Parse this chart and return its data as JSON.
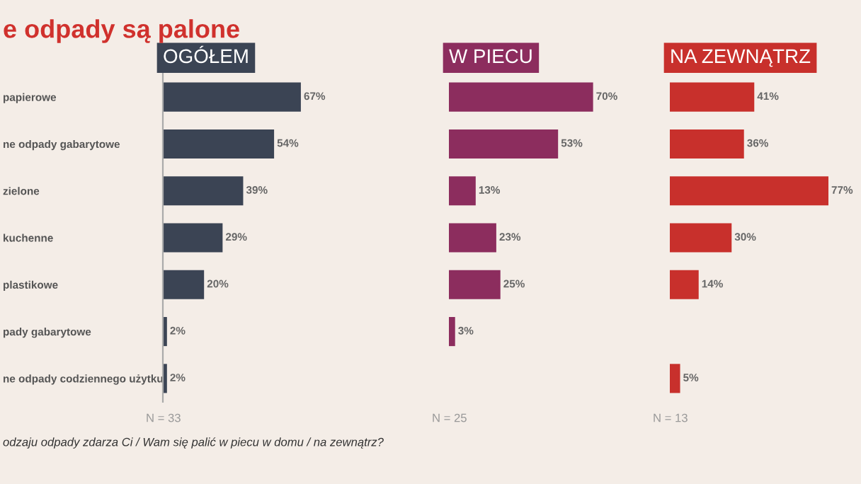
{
  "chart_data": [
    {
      "type": "bar",
      "orientation": "horizontal",
      "title": "OGÓŁEM",
      "categories": [
        "papierowe",
        "ne odpady gabarytowe",
        "zielone",
        "kuchenne",
        "plastikowe",
        "pady gabarytowe",
        "ne odpady codziennego użytku"
      ],
      "values": [
        67,
        54,
        39,
        29,
        20,
        2,
        2
      ],
      "color": "#3b4454",
      "value_labels": [
        "67%",
        "54%",
        "39%",
        "29%",
        "20%",
        "2%",
        "2%"
      ],
      "annotations": [
        "e odpady są palone",
        "N = 33",
        "odzaju odpady zdarza Ci / Wam się palić w piecu w domu / na zewnątrz?"
      ]
    },
    {
      "type": "bar",
      "orientation": "horizontal",
      "title": "W PIECU",
      "tick_labels": false,
      "values": [
        70,
        53,
        13,
        23,
        25,
        3,
        null
      ],
      "color": "#8c2d5e",
      "value_labels": [
        "70%",
        "53%",
        "13%",
        "23%",
        "25%",
        "3%",
        null
      ],
      "annotations": [
        "N = 25"
      ]
    },
    {
      "type": "bar",
      "orientation": "horizontal",
      "title": "NA ZEWNĄTRZ",
      "tick_labels": false,
      "values": [
        41,
        36,
        77,
        30,
        14,
        null,
        5
      ],
      "color": "#c8302c",
      "value_labels": [
        "41%",
        "36%",
        "77%",
        "30%",
        "14%",
        null,
        "5%"
      ],
      "annotations": [
        "N = 13"
      ]
    }
  ]
}
